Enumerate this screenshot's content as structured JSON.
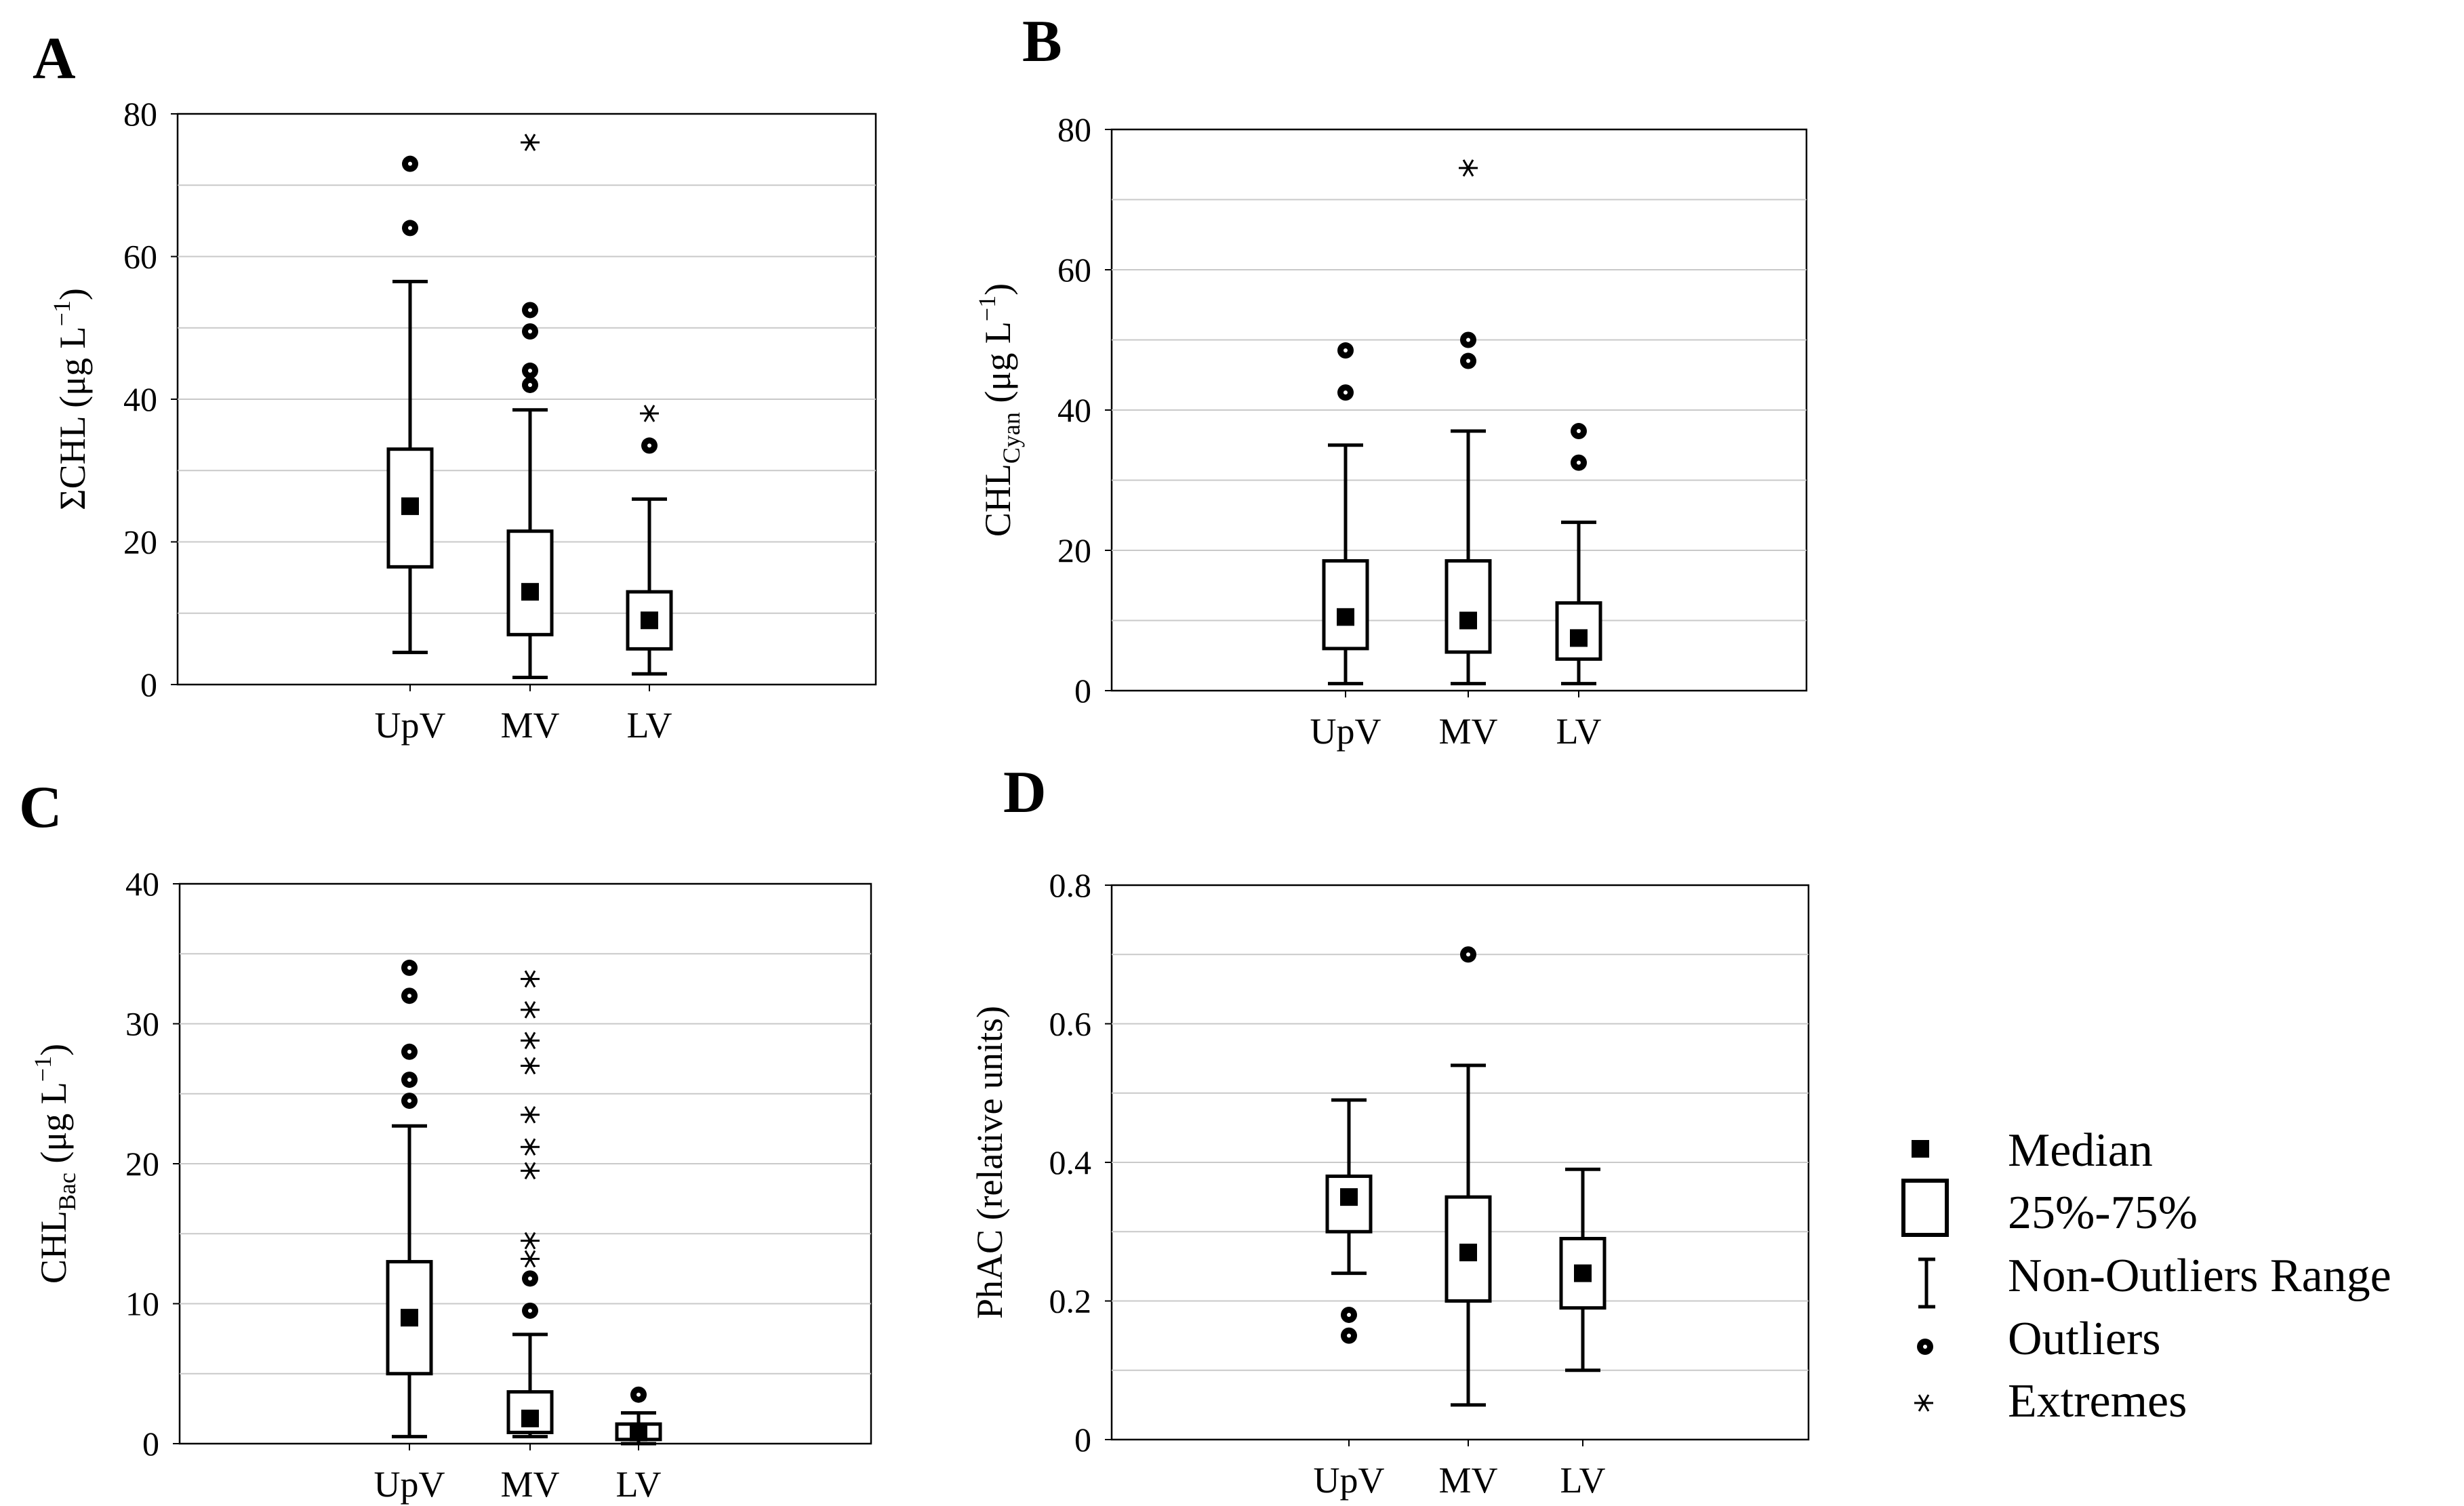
{
  "chart_data": [
    {
      "panel": "A",
      "type": "boxplot",
      "ylabel": "ΣCHL (μg L⁻¹)",
      "ylim": [
        0,
        80
      ],
      "yticks": [
        "0",
        "20",
        "40",
        "60",
        "80"
      ],
      "ytick_values": [
        0,
        20,
        40,
        60,
        80
      ],
      "grid_values": [
        10,
        20,
        30,
        40,
        50,
        60,
        70
      ],
      "categories": [
        "UpV",
        "MV",
        "LV"
      ],
      "boxes": [
        {
          "min": 4.5,
          "q1": 16.5,
          "median": 25,
          "q3": 33,
          "max": 56.5,
          "outliers": [
            64,
            73
          ],
          "extremes": []
        },
        {
          "min": 1,
          "q1": 7,
          "median": 13,
          "q3": 21.5,
          "max": 38.5,
          "outliers": [
            42,
            44,
            49.5,
            52.5
          ],
          "extremes": [
            76
          ]
        },
        {
          "min": 1.5,
          "q1": 5,
          "median": 9,
          "q3": 13,
          "max": 26,
          "outliers": [
            33.5
          ],
          "extremes": [
            38
          ]
        }
      ]
    },
    {
      "panel": "B",
      "type": "boxplot",
      "ylabel": "CHLCyan (μg L⁻¹)",
      "ylim": [
        0,
        80
      ],
      "yticks": [
        "0",
        "20",
        "40",
        "60",
        "80"
      ],
      "ytick_values": [
        0,
        20,
        40,
        60,
        80
      ],
      "grid_values": [
        10,
        20,
        30,
        40,
        50,
        60,
        70
      ],
      "categories": [
        "UpV",
        "MV",
        "LV"
      ],
      "boxes": [
        {
          "min": 1,
          "q1": 6,
          "median": 10.5,
          "q3": 18.5,
          "max": 35,
          "outliers": [
            42.5,
            48.5
          ],
          "extremes": []
        },
        {
          "min": 1,
          "q1": 5.5,
          "median": 10,
          "q3": 18.5,
          "max": 37,
          "outliers": [
            47,
            50
          ],
          "extremes": [
            74.5
          ]
        },
        {
          "min": 1,
          "q1": 4.5,
          "median": 7.5,
          "q3": 12.5,
          "max": 24,
          "outliers": [
            32.5,
            37
          ],
          "extremes": []
        }
      ]
    },
    {
      "panel": "C",
      "type": "boxplot",
      "ylabel": "CHLBac (μg L⁻¹)",
      "ylim": [
        0,
        40
      ],
      "yticks": [
        "0",
        "10",
        "20",
        "30",
        "40"
      ],
      "ytick_values": [
        0,
        10,
        20,
        30,
        40
      ],
      "grid_values": [
        5,
        10,
        15,
        20,
        25,
        30,
        35
      ],
      "categories": [
        "UpV",
        "MV",
        "LV"
      ],
      "boxes": [
        {
          "min": 0.5,
          "q1": 5,
          "median": 9,
          "q3": 13,
          "max": 22.7,
          "outliers": [
            24.5,
            26,
            28,
            32,
            34
          ],
          "extremes": []
        },
        {
          "min": 0.5,
          "q1": 0.8,
          "median": 1.8,
          "q3": 3.7,
          "max": 7.8,
          "outliers": [
            9.5,
            11.8
          ],
          "extremes": [
            13.2,
            14.5,
            19.5,
            21.2,
            23.5,
            27,
            28.8,
            31,
            33.2
          ]
        },
        {
          "min": 0,
          "q1": 0.3,
          "median": 0.8,
          "q3": 1.4,
          "max": 2.2,
          "outliers": [
            3.5
          ],
          "extremes": []
        }
      ]
    },
    {
      "panel": "D",
      "type": "boxplot",
      "ylabel": "PhAC (relative units)",
      "ylim": [
        0,
        0.8
      ],
      "yticks": [
        "0",
        "0.2",
        "0.4",
        "0.6",
        "0.8"
      ],
      "ytick_values": [
        0,
        0.2,
        0.4,
        0.6,
        0.8
      ],
      "grid_values": [
        0.1,
        0.2,
        0.3,
        0.4,
        0.5,
        0.6,
        0.7
      ],
      "categories": [
        "UpV",
        "MV",
        "LV"
      ],
      "boxes": [
        {
          "min": 0.24,
          "q1": 0.3,
          "median": 0.35,
          "q3": 0.38,
          "max": 0.49,
          "outliers": [
            0.15,
            0.18
          ],
          "extremes": []
        },
        {
          "min": 0.05,
          "q1": 0.2,
          "median": 0.27,
          "q3": 0.35,
          "max": 0.54,
          "outliers": [
            0.7
          ],
          "extremes": []
        },
        {
          "min": 0.1,
          "q1": 0.19,
          "median": 0.24,
          "q3": 0.29,
          "max": 0.39,
          "outliers": [],
          "extremes": []
        }
      ]
    }
  ],
  "legend": {
    "median": "Median",
    "box": "25%-75%",
    "range": "Non-Outliers Range",
    "outliers": "Outliers",
    "extremes": "Extremes"
  },
  "ylabels": {
    "A": {
      "main": "ΣCHL (μg L",
      "sup": "−1",
      "close": ")"
    },
    "B": {
      "main": "CHL",
      "sub": "Cyan",
      "rest": " (μg L",
      "sup": "−1",
      "close": ")"
    },
    "C": {
      "main": "CHL",
      "sub": "Bac",
      "rest": " (μg L",
      "sup": "−1",
      "close": ")"
    },
    "D": {
      "main": "PhAC (relative units)"
    }
  }
}
